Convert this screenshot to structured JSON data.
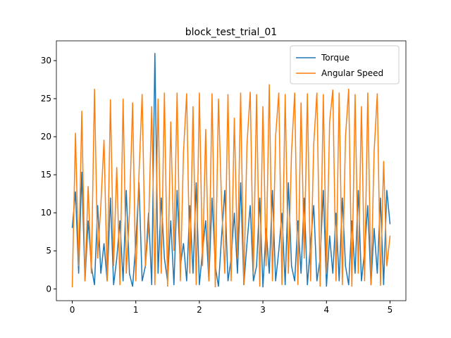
{
  "chart_data": {
    "type": "line",
    "title": "block_test_trial_01",
    "x": [
      0,
      0.05,
      0.1,
      0.15,
      0.2,
      0.25,
      0.3,
      0.35,
      0.4,
      0.45,
      0.5,
      0.55,
      0.6,
      0.65,
      0.7,
      0.75,
      0.8,
      0.85,
      0.9,
      0.95,
      1,
      1.05,
      1.1,
      1.15,
      1.2,
      1.25,
      1.3,
      1.35,
      1.4,
      1.45,
      1.5,
      1.55,
      1.6,
      1.65,
      1.7,
      1.75,
      1.8,
      1.85,
      1.9,
      1.95,
      2,
      2.05,
      2.1,
      2.15,
      2.2,
      2.25,
      2.3,
      2.35,
      2.4,
      2.45,
      2.5,
      2.55,
      2.6,
      2.65,
      2.7,
      2.75,
      2.8,
      2.85,
      2.9,
      2.95,
      3,
      3.05,
      3.1,
      3.15,
      3.2,
      3.25,
      3.3,
      3.35,
      3.4,
      3.45,
      3.5,
      3.55,
      3.6,
      3.65,
      3.7,
      3.75,
      3.8,
      3.85,
      3.9,
      3.95,
      4,
      4.05,
      4.1,
      4.15,
      4.2,
      4.25,
      4.3,
      4.35,
      4.4,
      4.45,
      4.5,
      4.55,
      4.6,
      4.65,
      4.7,
      4.75,
      4.8,
      4.85,
      4.9,
      4.95,
      5
    ],
    "series": [
      {
        "name": "Torque",
        "color": "#1f77b4",
        "values": [
          8,
          12.8,
          2,
          15.4,
          1,
          9,
          3,
          0.5,
          11,
          2,
          6,
          1,
          12,
          0.5,
          4,
          9,
          1,
          13,
          2,
          0.3,
          6,
          14,
          1,
          3,
          10,
          0.5,
          31,
          2,
          12,
          4,
          1,
          9,
          0.5,
          13,
          3,
          6,
          1,
          11,
          2,
          14,
          0.5,
          5,
          9,
          1,
          12,
          3,
          0.3,
          7,
          13,
          1,
          4,
          10,
          2,
          14,
          0.5,
          6,
          11,
          1,
          3,
          12,
          0.2,
          8,
          2,
          13,
          1,
          5,
          10,
          0.5,
          14,
          3,
          1,
          9,
          2,
          12,
          0.5,
          6,
          11,
          1,
          4,
          13,
          0.3,
          7,
          2,
          10,
          1,
          12,
          3,
          0.5,
          9,
          2,
          13,
          1,
          5,
          11,
          0.5,
          8,
          2,
          12,
          0.5,
          13,
          8.5
        ]
      },
      {
        "name": "Angular Speed",
        "color": "#ff7f0e",
        "values": [
          0.2,
          20.5,
          3,
          23.4,
          1,
          13.5,
          2,
          26.3,
          4,
          11,
          19.6,
          1,
          24.9,
          3,
          16,
          0.5,
          25,
          2,
          10,
          24.5,
          1,
          15,
          25.6,
          3,
          8,
          24,
          0.5,
          25,
          2,
          25.8,
          0.3,
          22,
          5,
          25.8,
          1,
          18,
          25.7,
          2,
          24,
          0.5,
          25.8,
          3,
          21,
          1,
          25.7,
          0.2,
          25,
          11,
          2,
          25.6,
          1,
          22.5,
          4,
          25.8,
          0.5,
          19,
          25.9,
          2,
          25.6,
          0.3,
          24,
          3,
          26.9,
          1,
          20,
          25.8,
          0.5,
          25.6,
          2,
          18,
          25.8,
          0.5,
          24.5,
          4,
          25.7,
          1,
          19,
          25.8,
          0.3,
          25.6,
          2,
          22,
          26.2,
          1,
          25.8,
          0.5,
          20,
          26.3,
          0.3,
          25.6,
          2,
          24,
          1,
          25.8,
          0.5,
          18,
          25.7,
          0.4,
          16.8,
          3,
          7
        ]
      }
    ],
    "xlim": [
      -0.25,
      5.25
    ],
    "ylim": [
      -1.55,
      32.6
    ],
    "xticks": [
      0,
      1,
      2,
      3,
      4,
      5
    ],
    "yticks": [
      0,
      5,
      10,
      15,
      20,
      25,
      30
    ],
    "legend": "upper right"
  }
}
